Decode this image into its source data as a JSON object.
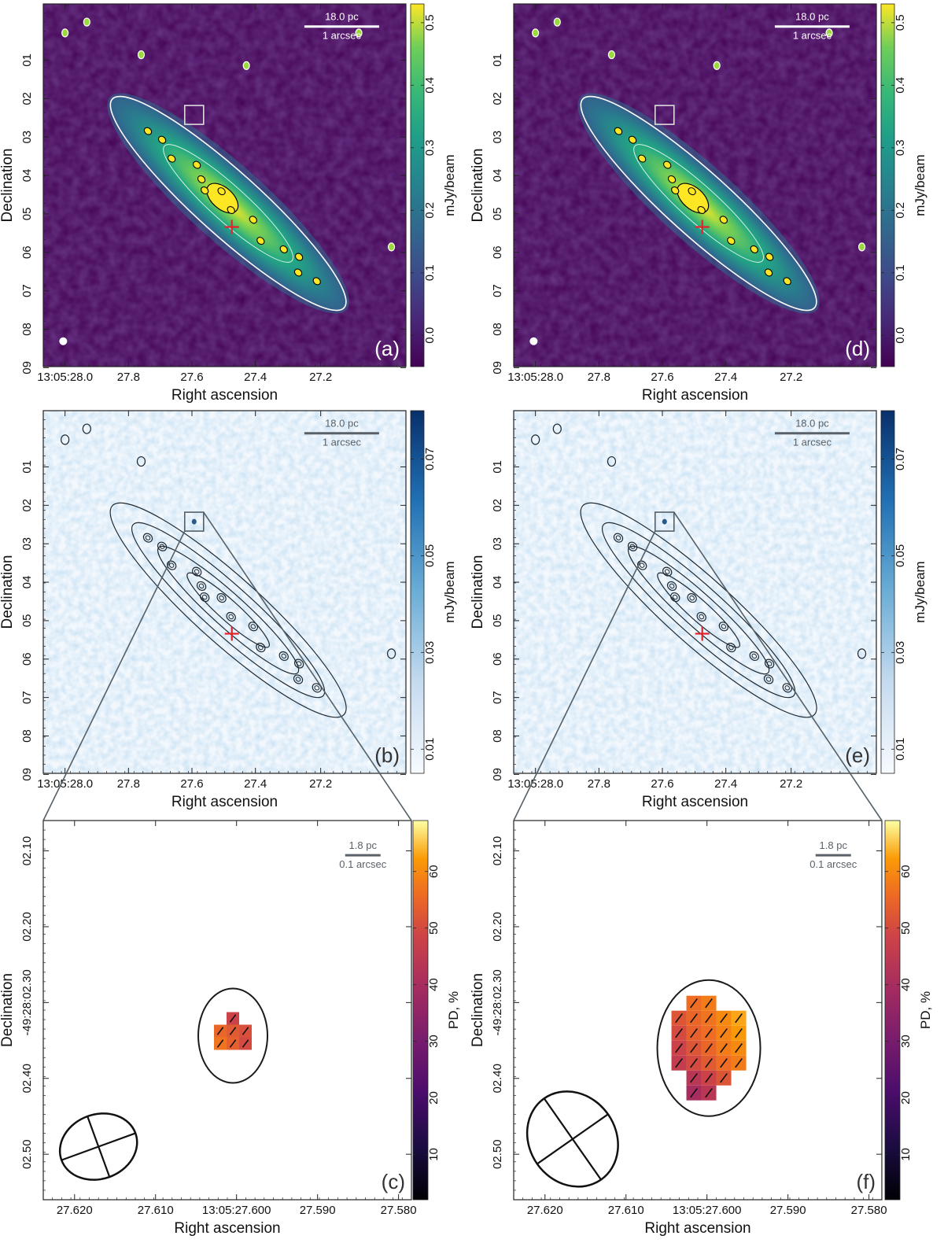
{
  "figure": {
    "xaxis_label": "Right ascension",
    "yaxis_label": "Declination",
    "units_flux": "mJy/beam",
    "units_pd": "PD, %"
  },
  "chart_data": [
    {
      "type": "heatmap",
      "panel": "(a)",
      "title": "",
      "xlabel": "Right ascension",
      "ylabel": "Declination",
      "xticks": [
        "13:05:28.0",
        "27.8",
        "27.6",
        "27.4",
        "27.2"
      ],
      "yticks": [
        "01",
        "02",
        "03",
        "04",
        "05",
        "06",
        "07",
        "08",
        "09"
      ],
      "colorbar": {
        "label": "mJy/beam",
        "ticks": [
          "0.0",
          "0.1",
          "0.2",
          "0.3",
          "0.4",
          "0.5"
        ],
        "range": [
          -0.05,
          0.53
        ],
        "colormap": "viridis"
      },
      "scalebar": [
        "18.0 pc",
        "1 arcsec"
      ],
      "marker": "red cross at nucleus",
      "contours": "white"
    },
    {
      "type": "heatmap",
      "panel": "(b)",
      "title": "",
      "xlabel": "Right ascension",
      "ylabel": "Declination",
      "xticks": [
        "13:05:28.0",
        "27.8",
        "27.6",
        "27.4",
        "27.2"
      ],
      "yticks": [
        "01",
        "02",
        "03",
        "04",
        "05",
        "06",
        "07",
        "08",
        "09"
      ],
      "colorbar": {
        "label": "mJy/beam",
        "ticks": [
          "0.01",
          "0.03",
          "0.05",
          "0.07"
        ],
        "range": [
          0.005,
          0.08
        ],
        "colormap": "blues"
      },
      "scalebar": [
        "18.0 pc",
        "1 arcsec"
      ],
      "marker": "red cross at nucleus",
      "contours": "black"
    },
    {
      "type": "heatmap",
      "panel": "(c)",
      "title": "",
      "xlabel": "Right ascension",
      "ylabel": "Declination",
      "xticks": [
        "27.620",
        "27.610",
        "13:05:27.600",
        "27.590",
        "27.580"
      ],
      "yticks": [
        "02.10",
        "02.20",
        "-49:28:02.30",
        "02.40",
        "02.50"
      ],
      "colorbar": {
        "label": "PD, %",
        "ticks": [
          "10",
          "20",
          "30",
          "40",
          "50",
          "60"
        ],
        "range": [
          2,
          69
        ],
        "colormap": "inferno"
      },
      "scalebar": [
        "1.8 pc",
        "0.1 arcsec"
      ],
      "pixels_pd": [
        [
          null,
          48,
          null
        ],
        [
          55,
          53,
          51
        ],
        [
          57,
          54,
          50
        ]
      ]
    },
    {
      "type": "heatmap",
      "panel": "(d)",
      "title": "",
      "xlabel": "Right ascension",
      "ylabel": "Declination",
      "xticks": [
        "13:05:28.0",
        "27.8",
        "27.6",
        "27.4",
        "27.2"
      ],
      "yticks": [
        "01",
        "02",
        "03",
        "04",
        "05",
        "06",
        "07",
        "08",
        "09"
      ],
      "colorbar": {
        "label": "mJy/beam",
        "ticks": [
          "0.0",
          "0.1",
          "0.2",
          "0.3",
          "0.4",
          "0.5"
        ],
        "range": [
          -0.05,
          0.53
        ],
        "colormap": "viridis"
      },
      "scalebar": [
        "18.0 pc",
        "1 arcsec"
      ],
      "marker": "red cross at nucleus",
      "contours": "white"
    },
    {
      "type": "heatmap",
      "panel": "(e)",
      "title": "",
      "xlabel": "Right ascension",
      "ylabel": "Declination",
      "xticks": [
        "13:05:28.0",
        "27.8",
        "27.6",
        "27.4",
        "27.2"
      ],
      "yticks": [
        "01",
        "02",
        "03",
        "04",
        "05",
        "06",
        "07",
        "08",
        "09"
      ],
      "colorbar": {
        "label": "mJy/beam",
        "ticks": [
          "0.01",
          "0.03",
          "0.05",
          "0.07"
        ],
        "range": [
          0.005,
          0.08
        ],
        "colormap": "blues"
      },
      "scalebar": [
        "18.0 pc",
        "1 arcsec"
      ],
      "marker": "red cross at nucleus",
      "contours": "black"
    },
    {
      "type": "heatmap",
      "panel": "(f)",
      "title": "",
      "xlabel": "Right ascension",
      "ylabel": "Declination",
      "xticks": [
        "27.620",
        "27.610",
        "13:05:27.600",
        "27.590",
        "27.580"
      ],
      "yticks": [
        "02.10",
        "02.20",
        "-49:28:02.30",
        "02.40",
        "02.50"
      ],
      "colorbar": {
        "label": "PD, %",
        "ticks": [
          "10",
          "20",
          "30",
          "40",
          "50",
          "60"
        ],
        "range": [
          2,
          69
        ],
        "colormap": "inferno"
      },
      "scalebar": [
        "1.8 pc",
        "0.1 arcsec"
      ],
      "pixels_pd": [
        [
          null,
          56,
          58,
          null,
          null
        ],
        [
          52,
          55,
          57,
          60,
          63
        ],
        [
          50,
          54,
          56,
          59,
          62
        ],
        [
          48,
          52,
          55,
          58,
          60
        ],
        [
          46,
          50,
          53,
          56,
          58
        ],
        [
          null,
          44,
          48,
          52,
          null
        ],
        [
          null,
          40,
          44,
          null,
          null
        ]
      ]
    }
  ]
}
